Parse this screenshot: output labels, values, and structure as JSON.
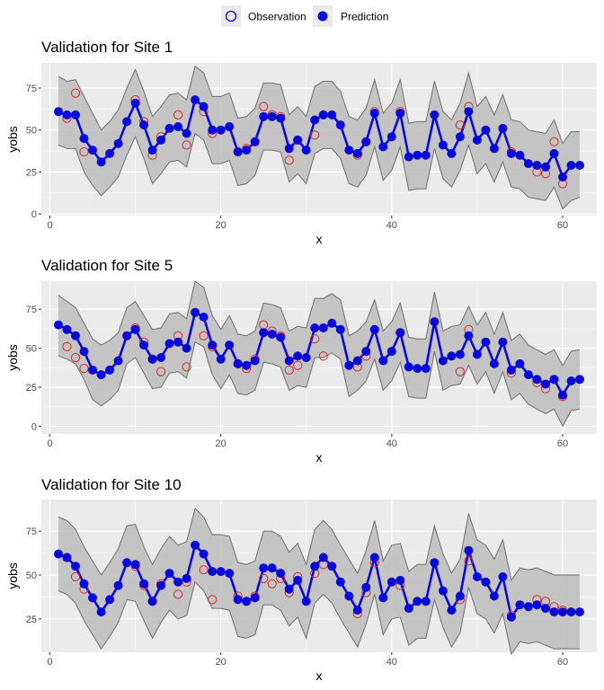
{
  "legend": {
    "items": [
      {
        "label": "Observation",
        "symbol": "open-circle",
        "color": "#d62728"
      },
      {
        "label": "Prediction",
        "symbol": "filled-circle",
        "color": "#0a0ad8"
      }
    ]
  },
  "colors": {
    "panel_bg": "#ebebeb",
    "grid": "#ffffff",
    "band_fill": "#bdbdbd",
    "band_line": "#6e6e6e",
    "prediction": "#0a0ad8",
    "observation": "#d62728"
  },
  "chart_data": [
    {
      "type": "line",
      "title": "Validation for Site 1",
      "xlabel": "x",
      "ylabel": "yobs",
      "xlim": [
        -1,
        64
      ],
      "ylim": [
        -1,
        90
      ],
      "xticks": [
        0,
        20,
        40,
        60
      ],
      "yticks": [
        0,
        25,
        50,
        75
      ],
      "x": [
        1,
        2,
        3,
        4,
        5,
        6,
        7,
        8,
        9,
        10,
        11,
        12,
        13,
        14,
        15,
        16,
        17,
        18,
        19,
        20,
        21,
        22,
        23,
        24,
        25,
        26,
        27,
        28,
        29,
        30,
        31,
        32,
        33,
        34,
        35,
        36,
        37,
        38,
        39,
        40,
        41,
        42,
        43,
        44,
        45,
        46,
        47,
        48,
        49,
        50,
        51,
        52,
        53,
        54,
        55,
        56,
        57,
        58,
        59,
        60,
        61,
        62
      ],
      "series": [
        {
          "name": "Prediction",
          "values": [
            61,
            59,
            59,
            45,
            38,
            31,
            36,
            42,
            55,
            66,
            53,
            38,
            44,
            51,
            52,
            48,
            68,
            64,
            50,
            50,
            52,
            37,
            38,
            43,
            58,
            58,
            57,
            39,
            44,
            38,
            56,
            59,
            59,
            53,
            38,
            36,
            43,
            60,
            40,
            46,
            60,
            34,
            35,
            35,
            59,
            41,
            36,
            46,
            61,
            44,
            50,
            39,
            51,
            36,
            35,
            30,
            29,
            28,
            36,
            22,
            29,
            29
          ]
        },
        {
          "name": "Observation",
          "values": [
            null,
            57,
            72,
            37,
            null,
            null,
            null,
            null,
            null,
            68,
            55,
            35,
            46,
            null,
            59,
            41,
            null,
            61,
            48,
            null,
            null,
            37,
            39,
            43,
            64,
            59,
            58,
            32,
            44,
            null,
            47,
            59,
            null,
            null,
            null,
            35,
            43,
            61,
            null,
            null,
            61,
            null,
            null,
            null,
            null,
            null,
            null,
            53,
            64,
            null,
            null,
            null,
            null,
            37,
            null,
            null,
            25,
            24,
            43,
            18,
            null,
            null
          ]
        },
        {
          "name": "Upper",
          "values": [
            82,
            79,
            80,
            70,
            60,
            50,
            55,
            62,
            75,
            86,
            73,
            58,
            64,
            71,
            72,
            68,
            88,
            84,
            70,
            70,
            72,
            57,
            58,
            63,
            78,
            78,
            77,
            59,
            64,
            58,
            76,
            79,
            79,
            73,
            58,
            56,
            63,
            80,
            60,
            66,
            80,
            54,
            55,
            55,
            79,
            61,
            56,
            66,
            84,
            64,
            70,
            59,
            71,
            56,
            55,
            50,
            49,
            48,
            56,
            42,
            49,
            49
          ]
        },
        {
          "name": "Lower",
          "values": [
            41,
            39,
            39,
            25,
            17,
            11,
            16,
            22,
            35,
            46,
            33,
            18,
            24,
            31,
            32,
            28,
            48,
            44,
            30,
            30,
            32,
            17,
            18,
            23,
            38,
            38,
            37,
            19,
            24,
            18,
            36,
            39,
            39,
            33,
            18,
            16,
            23,
            40,
            20,
            26,
            40,
            14,
            15,
            15,
            39,
            21,
            16,
            26,
            41,
            24,
            30,
            19,
            31,
            16,
            15,
            10,
            9,
            8,
            16,
            3,
            8,
            10
          ]
        }
      ]
    },
    {
      "type": "line",
      "title": "Validation for Site 5",
      "xlabel": "x",
      "ylabel": "yobs",
      "xlim": [
        -1,
        64
      ],
      "ylim": [
        -5,
        93
      ],
      "xticks": [
        0,
        20,
        40,
        60
      ],
      "yticks": [
        0,
        25,
        50,
        75
      ],
      "x": [
        1,
        2,
        3,
        4,
        5,
        6,
        7,
        8,
        9,
        10,
        11,
        12,
        13,
        14,
        15,
        16,
        17,
        18,
        19,
        20,
        21,
        22,
        23,
        24,
        25,
        26,
        27,
        28,
        29,
        30,
        31,
        32,
        33,
        34,
        35,
        36,
        37,
        38,
        39,
        40,
        41,
        42,
        43,
        44,
        45,
        46,
        47,
        48,
        49,
        50,
        51,
        52,
        53,
        54,
        55,
        56,
        57,
        58,
        59,
        60,
        61,
        62
      ],
      "series": [
        {
          "name": "Prediction",
          "values": [
            65,
            62,
            58,
            48,
            36,
            33,
            36,
            42,
            58,
            62,
            52,
            43,
            44,
            53,
            54,
            50,
            73,
            70,
            52,
            43,
            52,
            40,
            39,
            42,
            60,
            59,
            57,
            42,
            45,
            44,
            63,
            63,
            66,
            62,
            39,
            42,
            48,
            62,
            42,
            48,
            60,
            38,
            37,
            37,
            67,
            42,
            45,
            46,
            58,
            46,
            54,
            40,
            54,
            36,
            40,
            33,
            30,
            27,
            30,
            20,
            29,
            30
          ]
        },
        {
          "name": "Observation",
          "values": [
            null,
            51,
            44,
            37,
            null,
            null,
            null,
            null,
            null,
            63,
            54,
            43,
            35,
            null,
            58,
            38,
            null,
            58,
            51,
            null,
            null,
            40,
            37,
            43,
            65,
            61,
            58,
            36,
            39,
            null,
            56,
            45,
            null,
            null,
            null,
            38,
            45,
            62,
            null,
            null,
            60,
            null,
            null,
            null,
            null,
            null,
            null,
            35,
            62,
            null,
            null,
            null,
            null,
            34,
            null,
            null,
            28,
            24,
            30,
            19,
            null,
            null
          ]
        },
        {
          "name": "Upper",
          "values": [
            84,
            80,
            76,
            66,
            56,
            52,
            55,
            60,
            76,
            80,
            71,
            62,
            63,
            72,
            73,
            69,
            93,
            89,
            71,
            62,
            71,
            59,
            58,
            61,
            79,
            78,
            76,
            61,
            64,
            63,
            82,
            82,
            85,
            81,
            58,
            61,
            67,
            81,
            61,
            67,
            79,
            57,
            56,
            56,
            86,
            61,
            64,
            65,
            77,
            65,
            73,
            59,
            73,
            55,
            59,
            52,
            49,
            46,
            49,
            39,
            48,
            49
          ]
        },
        {
          "name": "Lower",
          "values": [
            45,
            43,
            40,
            30,
            17,
            13,
            17,
            23,
            40,
            44,
            34,
            24,
            25,
            34,
            35,
            31,
            54,
            51,
            33,
            24,
            33,
            21,
            20,
            23,
            41,
            40,
            38,
            23,
            26,
            25,
            44,
            44,
            47,
            43,
            19,
            23,
            29,
            43,
            23,
            29,
            41,
            19,
            18,
            18,
            48,
            23,
            26,
            27,
            39,
            27,
            35,
            21,
            35,
            17,
            21,
            14,
            11,
            8,
            11,
            0,
            10,
            11
          ]
        }
      ]
    },
    {
      "type": "line",
      "title": "Validation for Site 10",
      "xlabel": "x",
      "ylabel": "yobs",
      "xlim": [
        -1,
        64
      ],
      "ylim": [
        6,
        93
      ],
      "xticks": [
        0,
        20,
        40,
        60
      ],
      "yticks": [
        25,
        50,
        75
      ],
      "x": [
        1,
        2,
        3,
        4,
        5,
        6,
        7,
        8,
        9,
        10,
        11,
        12,
        13,
        14,
        15,
        16,
        17,
        18,
        19,
        20,
        21,
        22,
        23,
        24,
        25,
        26,
        27,
        28,
        29,
        30,
        31,
        32,
        33,
        34,
        35,
        36,
        37,
        38,
        39,
        40,
        41,
        42,
        43,
        44,
        45,
        46,
        47,
        48,
        49,
        50,
        51,
        52,
        53,
        54,
        55,
        56,
        57,
        58,
        59,
        60,
        61,
        62
      ],
      "series": [
        {
          "name": "Prediction",
          "values": [
            62,
            60,
            55,
            45,
            37,
            29,
            36,
            44,
            57,
            56,
            45,
            35,
            44,
            51,
            46,
            48,
            67,
            62,
            52,
            52,
            51,
            36,
            35,
            37,
            54,
            54,
            51,
            42,
            47,
            35,
            55,
            60,
            55,
            46,
            38,
            30,
            43,
            60,
            37,
            46,
            47,
            31,
            35,
            35,
            57,
            41,
            30,
            38,
            64,
            49,
            46,
            38,
            49,
            26,
            33,
            32,
            33,
            31,
            29,
            29,
            29,
            29
          ]
        },
        {
          "name": "Observation",
          "values": [
            null,
            60,
            49,
            42,
            null,
            null,
            null,
            null,
            null,
            55,
            44,
            35,
            45,
            null,
            39,
            46,
            null,
            53,
            36,
            null,
            null,
            38,
            35,
            38,
            48,
            45,
            48,
            40,
            49,
            null,
            51,
            56,
            null,
            null,
            null,
            28,
            40,
            57,
            null,
            null,
            44,
            null,
            null,
            null,
            null,
            null,
            null,
            36,
            58,
            null,
            null,
            null,
            null,
            27,
            null,
            null,
            36,
            35,
            32,
            30,
            null,
            null
          ]
        },
        {
          "name": "Upper",
          "values": [
            83,
            81,
            76,
            66,
            58,
            50,
            57,
            65,
            78,
            79,
            66,
            56,
            65,
            72,
            67,
            69,
            88,
            83,
            73,
            73,
            72,
            57,
            56,
            58,
            75,
            75,
            72,
            63,
            68,
            56,
            76,
            81,
            76,
            67,
            59,
            51,
            64,
            81,
            58,
            67,
            68,
            52,
            56,
            56,
            78,
            62,
            51,
            59,
            85,
            70,
            67,
            59,
            70,
            47,
            54,
            53,
            54,
            52,
            50,
            50,
            50,
            50
          ]
        },
        {
          "name": "Lower",
          "values": [
            41,
            39,
            34,
            24,
            16,
            8,
            15,
            23,
            36,
            35,
            24,
            14,
            23,
            30,
            25,
            27,
            46,
            41,
            31,
            31,
            30,
            15,
            14,
            16,
            33,
            33,
            30,
            21,
            26,
            14,
            34,
            39,
            34,
            25,
            17,
            9,
            22,
            39,
            16,
            25,
            26,
            10,
            14,
            14,
            36,
            20,
            9,
            17,
            43,
            28,
            25,
            17,
            28,
            5,
            12,
            11,
            12,
            10,
            8,
            8,
            8,
            8
          ]
        }
      ]
    }
  ]
}
